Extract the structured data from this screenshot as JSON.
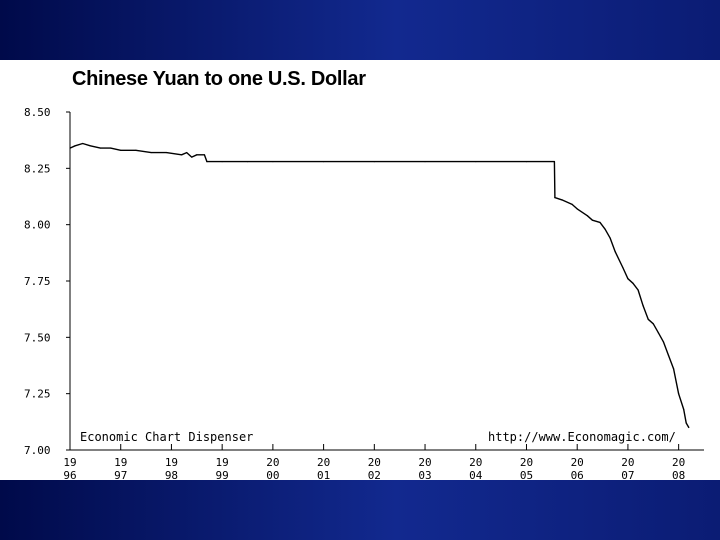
{
  "slide": {
    "band_color": "#12298f"
  },
  "chart_data": {
    "type": "line",
    "title": "Chinese Yuan to one U.S. Dollar",
    "xlabel": "",
    "ylabel": "",
    "xlim": [
      1996,
      2008.5
    ],
    "ylim": [
      7.0,
      8.5
    ],
    "y_ticks": [
      "8.50",
      "8.25",
      "8.00",
      "7.75",
      "7.50",
      "7.25",
      "7.00"
    ],
    "y_tick_values": [
      8.5,
      8.25,
      8.0,
      7.75,
      7.5,
      7.25,
      7.0
    ],
    "x_ticks": [
      {
        "value": 1996,
        "top": "19",
        "bottom": "96"
      },
      {
        "value": 1997,
        "top": "19",
        "bottom": "97"
      },
      {
        "value": 1998,
        "top": "19",
        "bottom": "98"
      },
      {
        "value": 1999,
        "top": "19",
        "bottom": "99"
      },
      {
        "value": 2000,
        "top": "20",
        "bottom": "00"
      },
      {
        "value": 2001,
        "top": "20",
        "bottom": "01"
      },
      {
        "value": 2002,
        "top": "20",
        "bottom": "02"
      },
      {
        "value": 2003,
        "top": "20",
        "bottom": "03"
      },
      {
        "value": 2004,
        "top": "20",
        "bottom": "04"
      },
      {
        "value": 2005,
        "top": "20",
        "bottom": "05"
      },
      {
        "value": 2006,
        "top": "20",
        "bottom": "06"
      },
      {
        "value": 2007,
        "top": "20",
        "bottom": "07"
      },
      {
        "value": 2008,
        "top": "20",
        "bottom": "08"
      }
    ],
    "series": [
      {
        "line_color": "#000000",
        "points": [
          [
            1996.0,
            8.34
          ],
          [
            1996.1,
            8.35
          ],
          [
            1996.25,
            8.36
          ],
          [
            1996.4,
            8.35
          ],
          [
            1996.6,
            8.34
          ],
          [
            1996.8,
            8.34
          ],
          [
            1997.0,
            8.33
          ],
          [
            1997.3,
            8.33
          ],
          [
            1997.6,
            8.32
          ],
          [
            1997.9,
            8.32
          ],
          [
            1998.2,
            8.31
          ],
          [
            1998.3,
            8.32
          ],
          [
            1998.4,
            8.3
          ],
          [
            1998.5,
            8.31
          ],
          [
            1998.65,
            8.31
          ],
          [
            1998.7,
            8.28
          ],
          [
            1999.0,
            8.28
          ],
          [
            1999.5,
            8.28
          ],
          [
            2000.0,
            8.28
          ],
          [
            2001.0,
            8.28
          ],
          [
            2002.0,
            8.28
          ],
          [
            2003.0,
            8.28
          ],
          [
            2004.0,
            8.28
          ],
          [
            2005.0,
            8.28
          ],
          [
            2005.55,
            8.28
          ],
          [
            2005.56,
            8.12
          ],
          [
            2005.7,
            8.11
          ],
          [
            2005.9,
            8.09
          ],
          [
            2006.0,
            8.07
          ],
          [
            2006.2,
            8.04
          ],
          [
            2006.3,
            8.02
          ],
          [
            2006.45,
            8.01
          ],
          [
            2006.55,
            7.98
          ],
          [
            2006.65,
            7.94
          ],
          [
            2006.75,
            7.88
          ],
          [
            2006.9,
            7.81
          ],
          [
            2007.0,
            7.76
          ],
          [
            2007.1,
            7.74
          ],
          [
            2007.2,
            7.71
          ],
          [
            2007.3,
            7.64
          ],
          [
            2007.4,
            7.58
          ],
          [
            2007.5,
            7.56
          ],
          [
            2007.6,
            7.52
          ],
          [
            2007.7,
            7.48
          ],
          [
            2007.8,
            7.42
          ],
          [
            2007.9,
            7.36
          ],
          [
            2008.0,
            7.25
          ],
          [
            2008.1,
            7.18
          ],
          [
            2008.15,
            7.12
          ],
          [
            2008.2,
            7.1
          ]
        ]
      }
    ],
    "annotations": {
      "left": "Economic Chart Dispenser",
      "right": "http://www.Economagic.com/"
    }
  }
}
